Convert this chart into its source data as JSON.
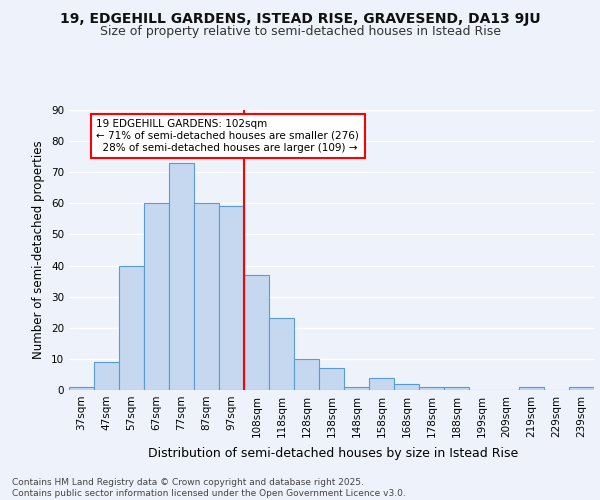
{
  "title1": "19, EDGEHILL GARDENS, ISTEAD RISE, GRAVESEND, DA13 9JU",
  "title2": "Size of property relative to semi-detached houses in Istead Rise",
  "xlabel": "Distribution of semi-detached houses by size in Istead Rise",
  "ylabel": "Number of semi-detached properties",
  "footnote": "Contains HM Land Registry data © Crown copyright and database right 2025.\nContains public sector information licensed under the Open Government Licence v3.0.",
  "bar_labels": [
    "37sqm",
    "47sqm",
    "57sqm",
    "67sqm",
    "77sqm",
    "87sqm",
    "97sqm",
    "108sqm",
    "118sqm",
    "128sqm",
    "138sqm",
    "148sqm",
    "158sqm",
    "168sqm",
    "178sqm",
    "188sqm",
    "199sqm",
    "209sqm",
    "219sqm",
    "229sqm",
    "239sqm"
  ],
  "bar_values": [
    1,
    9,
    40,
    60,
    73,
    60,
    59,
    37,
    23,
    10,
    7,
    1,
    4,
    2,
    1,
    1,
    0,
    0,
    1,
    0,
    1
  ],
  "bar_color": "#c5d8f0",
  "bar_edge_color": "#5b9bd5",
  "vline_color": "red",
  "annotation_text": "19 EDGEHILL GARDENS: 102sqm\n← 71% of semi-detached houses are smaller (276)\n  28% of semi-detached houses are larger (109) →",
  "annotation_box_color": "white",
  "annotation_box_edge": "red",
  "ylim": [
    0,
    90
  ],
  "yticks": [
    0,
    10,
    20,
    30,
    40,
    50,
    60,
    70,
    80,
    90
  ],
  "background_color": "#eef2fb",
  "grid_color": "#ffffff",
  "title1_fontsize": 10,
  "title2_fontsize": 9,
  "xlabel_fontsize": 9,
  "ylabel_fontsize": 8.5,
  "tick_fontsize": 7.5,
  "footnote_fontsize": 6.5
}
